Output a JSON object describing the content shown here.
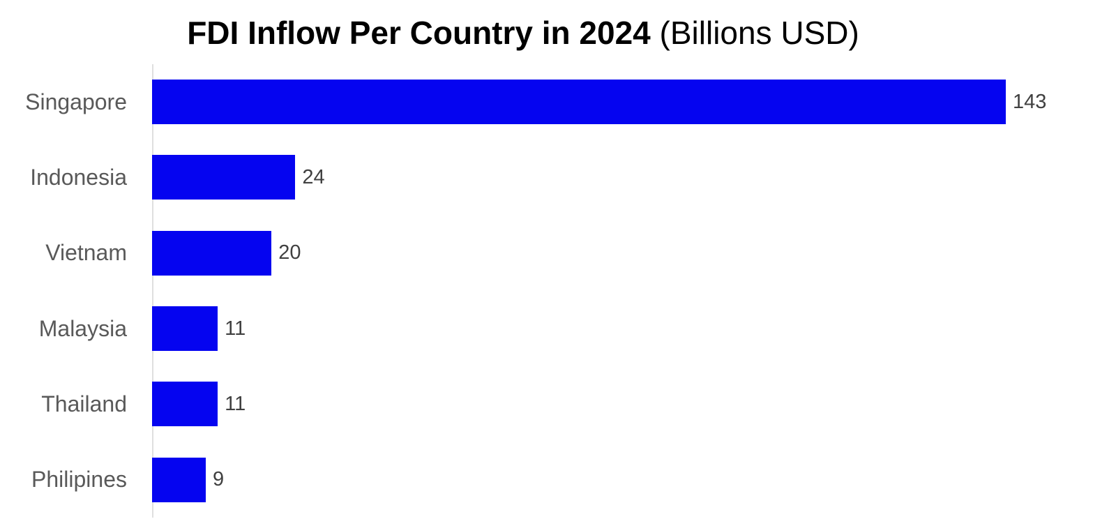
{
  "chart_data": {
    "type": "bar",
    "orientation": "horizontal",
    "title_bold": "FDI Inflow Per Country in 2024",
    "title_regular": " (Billions USD)",
    "categories": [
      "Singapore",
      "Indonesia",
      "Vietnam",
      "Malaysia",
      "Thailand",
      "Philipines"
    ],
    "values": [
      143,
      24,
      20,
      11,
      11,
      9
    ],
    "value_labels": [
      "143",
      "24",
      "20",
      "11",
      "11",
      "9"
    ],
    "xlim": [
      0,
      143
    ],
    "grid": false,
    "legend": "none",
    "bar_color": "#0504F0",
    "category_label_color": "#595959",
    "value_label_color": "#404040",
    "axis_line_color": "#DFDFDF",
    "background_color": "#FFFFFF"
  }
}
